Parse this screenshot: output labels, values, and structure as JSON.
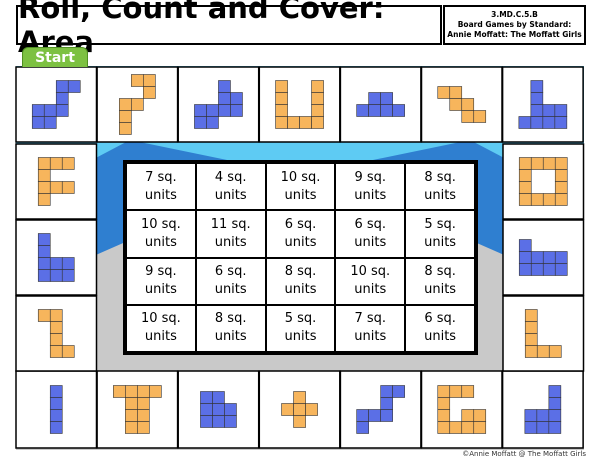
{
  "header": {
    "title": "Roll, Count and Cover: Area",
    "standard": "3.MD.C.5.B",
    "series": "Board Games by Standard:",
    "author": "Annie Moffatt: The Moffatt Girls"
  },
  "start": "Start",
  "table": {
    "rows": [
      [
        "7 sq. units",
        "4 sq. units",
        "10 sq. units",
        "9 sq. units",
        "8 sq. units"
      ],
      [
        "10 sq. units",
        "11 sq. units",
        "6 sq. units",
        "6 sq. units",
        "5 sq. units"
      ],
      [
        "9 sq. units",
        "6 sq. units",
        "8 sq. units",
        "10 sq. units",
        "8 sq. units"
      ],
      [
        "10 sq. units",
        "8 sq. units",
        "5 sq. units",
        "7 sq. units",
        "6 sq. units"
      ]
    ]
  },
  "footer": "©Annie Moffatt @ The Moffatt Girls"
}
